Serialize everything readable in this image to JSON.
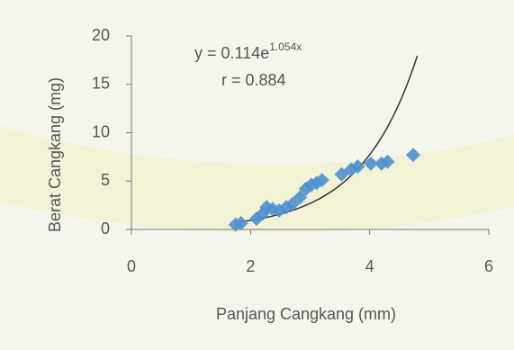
{
  "chart_data": {
    "type": "scatter",
    "x_label": "Panjang Cangkang (mm)",
    "y_label": "Berat Cangkang (mg)",
    "equation": "y = 0.114e",
    "equation_exponent": "1.054x",
    "r_label": "r = 0.884",
    "trendline": {
      "a": 0.114,
      "b": 1.054,
      "x_start": 1.75,
      "x_end": 4.8,
      "color": "#333333"
    },
    "color": "#4f8fcf",
    "x": [
      1.75,
      1.84,
      2.1,
      2.2,
      2.27,
      2.37,
      2.48,
      2.6,
      2.7,
      2.83,
      2.93,
      3.02,
      3.11,
      3.2,
      3.53,
      3.69,
      3.8,
      4.02,
      4.2,
      4.3,
      4.73
    ],
    "values": [
      0.5,
      0.65,
      1.1,
      1.6,
      2.3,
      2.1,
      1.95,
      2.3,
      2.6,
      3.3,
      4.2,
      4.6,
      4.8,
      5.1,
      5.7,
      6.2,
      6.5,
      6.8,
      6.8,
      7.0,
      7.7
    ],
    "xlim": [
      0,
      6
    ],
    "xticks": [
      0,
      2,
      4,
      6
    ],
    "ylim": [
      0,
      20
    ],
    "yticks": [
      0,
      5,
      10,
      15,
      20
    ]
  }
}
